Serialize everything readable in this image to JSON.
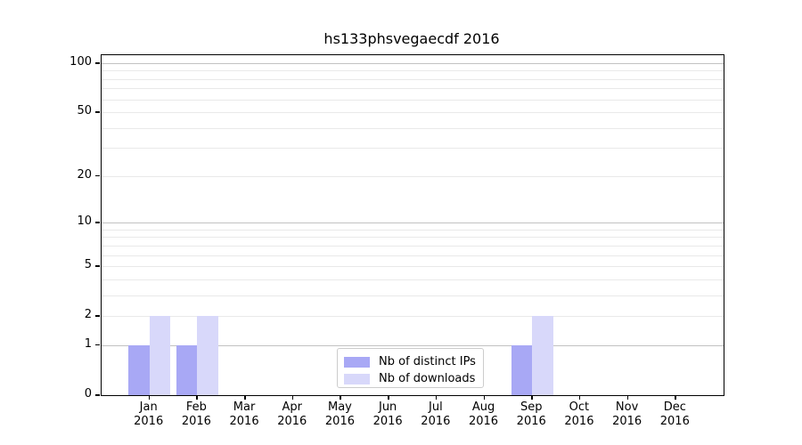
{
  "title": "hs133phsvegaecdf 2016",
  "chart_data": {
    "type": "bar",
    "title": "hs133phsvegaecdf 2016",
    "categories": [
      "Jan 2016",
      "Feb 2016",
      "Mar 2016",
      "Apr 2016",
      "May 2016",
      "Jun 2016",
      "Jul 2016",
      "Aug 2016",
      "Sep 2016",
      "Oct 2016",
      "Nov 2016",
      "Dec 2016"
    ],
    "months": [
      "Jan",
      "Feb",
      "Mar",
      "Apr",
      "May",
      "Jun",
      "Jul",
      "Aug",
      "Sep",
      "Oct",
      "Nov",
      "Dec"
    ],
    "year": "2016",
    "series": [
      {
        "name": "Nb of distinct IPs",
        "color": "#a8a8f5",
        "values": [
          1,
          1,
          0,
          0,
          0,
          0,
          0,
          0,
          1,
          0,
          0,
          0
        ]
      },
      {
        "name": "Nb of downloads",
        "color": "#d8d8fa",
        "values": [
          2,
          2,
          0,
          0,
          0,
          0,
          0,
          0,
          2,
          0,
          0,
          0
        ]
      }
    ],
    "xlabel": "",
    "ylabel": "",
    "y_scale": "log1p",
    "ylim": [
      0,
      112
    ],
    "y_tick_values": [
      0,
      1,
      2,
      5,
      10,
      20,
      50,
      100
    ],
    "y_tick_labels": [
      "0",
      "1",
      "2",
      "5",
      "10",
      "20",
      "50",
      "100"
    ],
    "grid": {
      "on": true,
      "major_lines": [
        1,
        10,
        100
      ],
      "minor_lines": [
        2,
        3,
        4,
        5,
        6,
        7,
        8,
        9,
        20,
        30,
        40,
        50,
        60,
        70,
        80,
        90
      ]
    },
    "legend": {
      "position": "lower center",
      "entries": [
        "Nb of distinct IPs",
        "Nb of downloads"
      ]
    },
    "colors": {
      "background": "#ffffff",
      "axis": "#000000",
      "grid_major": "#c2c2c2",
      "grid_minor": "#e9e9e9",
      "legend_border": "#cccccc",
      "text": "#000000"
    }
  }
}
